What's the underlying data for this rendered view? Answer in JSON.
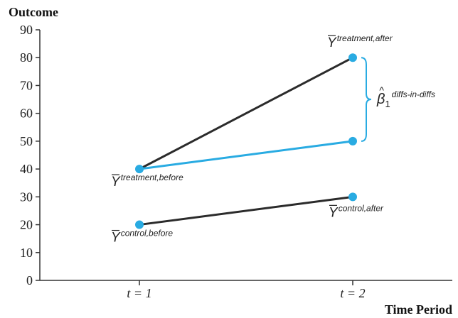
{
  "chart_data": {
    "type": "line",
    "xlabel": "Time Period",
    "ylabel": "Outcome",
    "categories": [
      "t = 1",
      "t = 2"
    ],
    "x": [
      1,
      2
    ],
    "ylim": [
      0,
      90
    ],
    "y_ticks": [
      0,
      10,
      20,
      30,
      40,
      50,
      60,
      70,
      80,
      90
    ],
    "grid": false,
    "series": [
      {
        "values": [
          40,
          80
        ],
        "color": "#2b2b2b"
      },
      {
        "values": [
          40,
          50
        ],
        "color": "#29abe2"
      },
      {
        "values": [
          20,
          30
        ],
        "color": "#2b2b2b"
      }
    ],
    "marker_color": "#29abe2",
    "brace_color": "#29abe2",
    "brace_range": [
      50,
      80
    ],
    "annotations": [
      {
        "x": 2,
        "y": 80,
        "base": "Y",
        "sup": "treatment,after",
        "place": "above"
      },
      {
        "x": 1,
        "y": 40,
        "base": "Y",
        "sup": "treatment,before",
        "place": "below"
      },
      {
        "x": 2,
        "y": 30,
        "base": "Y",
        "sup": "control,after",
        "place": "below"
      },
      {
        "x": 1,
        "y": 20,
        "base": "Y",
        "sup": "control,before",
        "place": "below"
      }
    ],
    "brace_label": {
      "base": "β",
      "hat": "^",
      "sub": "1",
      "sup": "diffs-in-diffs"
    }
  }
}
